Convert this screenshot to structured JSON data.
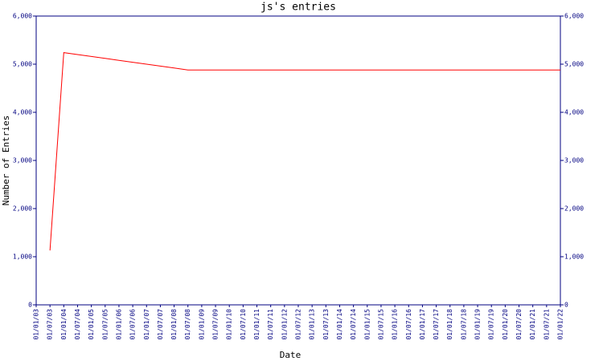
{
  "chart_data": {
    "type": "line",
    "title": "js's entries",
    "xlabel": "Date",
    "ylabel": "Number of Entries",
    "categories": [
      "01/01/03",
      "01/07/03",
      "01/01/04",
      "01/07/04",
      "01/01/05",
      "01/07/05",
      "01/01/06",
      "01/07/06",
      "01/01/07",
      "01/07/07",
      "01/01/08",
      "01/07/08",
      "01/01/09",
      "01/07/09",
      "01/01/10",
      "01/07/10",
      "01/01/11",
      "01/07/11",
      "01/01/12",
      "01/07/12",
      "01/01/13",
      "01/07/13",
      "01/01/14",
      "01/07/14",
      "01/01/15",
      "01/07/15",
      "01/01/16",
      "01/07/16",
      "01/01/17",
      "01/07/17",
      "01/01/18",
      "01/07/18",
      "01/01/19",
      "01/07/19",
      "01/01/20",
      "01/07/20",
      "01/01/21",
      "01/07/21",
      "01/01/22"
    ],
    "series": [
      {
        "color": "#ff0000",
        "values": [
          null,
          1130,
          5240,
          5200,
          5160,
          5120,
          5080,
          5040,
          5000,
          4960,
          4920,
          4880,
          4880,
          4880,
          4880,
          4880,
          4880,
          4880,
          4880,
          4880,
          4880,
          4880,
          4880,
          4880,
          4880,
          4880,
          4880,
          4880,
          4880,
          4880,
          4880,
          4880,
          4880,
          4880,
          4880,
          4880,
          4880,
          4880,
          4880
        ]
      }
    ],
    "ylim": [
      0,
      6000
    ],
    "yticks": [
      0,
      {
        "value": 1000,
        "label": "1,000"
      },
      {
        "value": 2000,
        "label": "2,000"
      },
      {
        "value": 3000,
        "label": "3,000"
      },
      {
        "value": 4000,
        "label": "4,000"
      },
      {
        "value": 5000,
        "label": "5,000"
      },
      {
        "value": 6000,
        "label": "6,000"
      }
    ],
    "y2lim": [
      0,
      6000
    ],
    "y2ticks": [
      0,
      {
        "value": 1000,
        "label": "1,000"
      },
      {
        "value": 2000,
        "label": "2,000"
      },
      {
        "value": 3000,
        "label": "3,000"
      },
      {
        "value": 4000,
        "label": "4,000"
      },
      {
        "value": 5000,
        "label": "5,000"
      },
      {
        "value": 6000,
        "label": "6,000"
      }
    ],
    "axis_color": "#000080"
  }
}
